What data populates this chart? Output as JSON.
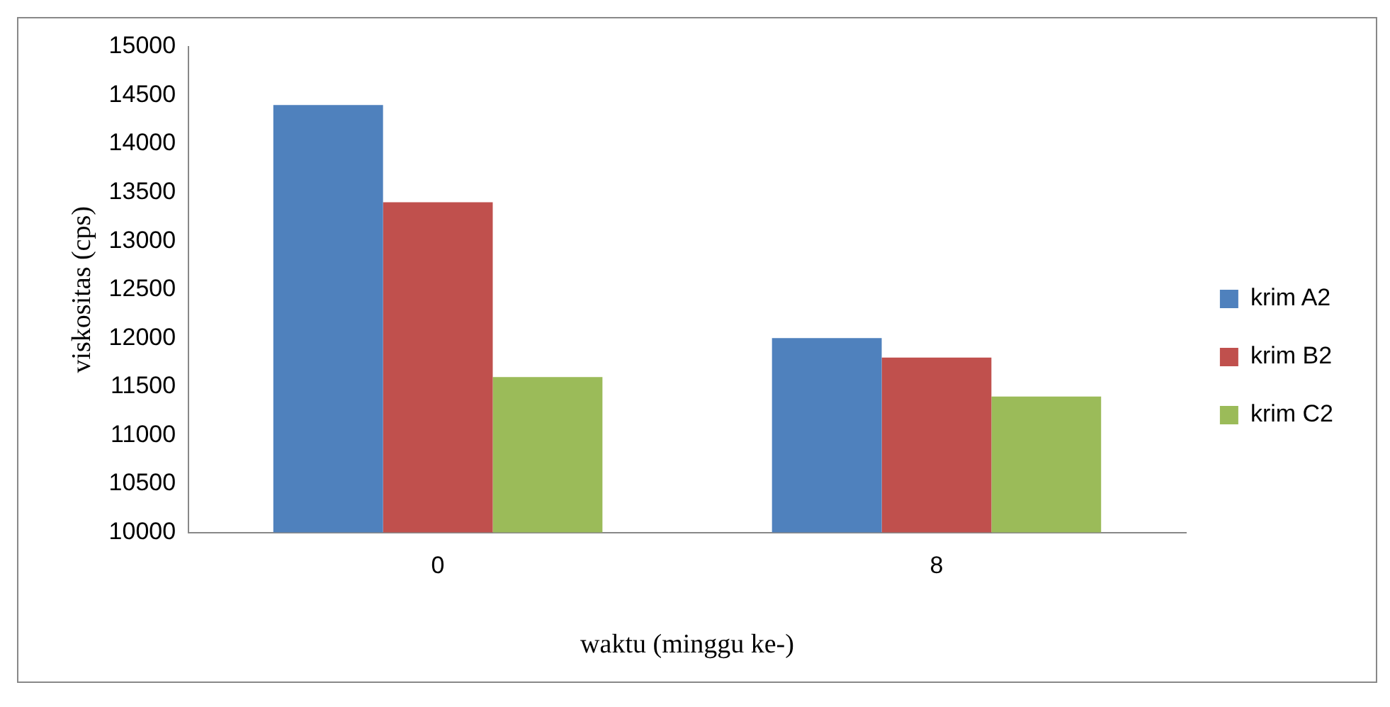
{
  "chart_data": {
    "type": "bar",
    "xlabel": "waktu (minggu ke-)",
    "ylabel": "viskositas (cps)",
    "categories": [
      "0",
      "8"
    ],
    "series": [
      {
        "name": "krim A2",
        "color": "#4f81bd",
        "values": [
          14400,
          12000
        ]
      },
      {
        "name": "krim B2",
        "color": "#c0504d",
        "values": [
          13400,
          11800
        ]
      },
      {
        "name": "krim C2",
        "color": "#9bbb59",
        "values": [
          11600,
          11400
        ]
      }
    ],
    "ylim": [
      10000,
      15000
    ],
    "yticks": [
      10000,
      10500,
      11000,
      11500,
      12000,
      12500,
      13000,
      13500,
      14000,
      14500,
      15000
    ],
    "grid": false,
    "legend": "right"
  }
}
